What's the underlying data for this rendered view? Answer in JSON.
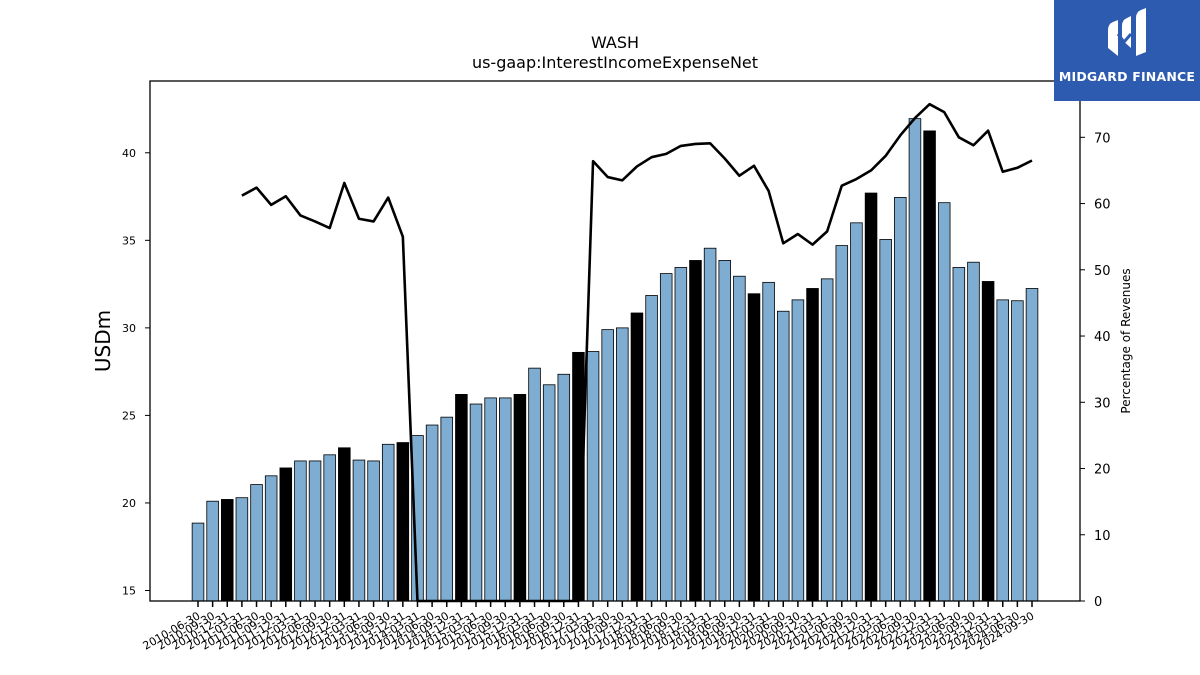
{
  "chart_data": {
    "type": "bar",
    "title": "WASH",
    "subtitle": "us-gaap:InterestIncomeExpenseNet",
    "ylabel": "USDm",
    "y2label": "Percentage of Revenues",
    "ylim": [
      14.4,
      44.1
    ],
    "y2lim": [
      0,
      78.5
    ],
    "yticks": [
      15,
      20,
      25,
      30,
      35,
      40
    ],
    "y2ticks": [
      0,
      10,
      20,
      30,
      40,
      50,
      60,
      70
    ],
    "categories": [
      "2010-06-30",
      "2010-09-30",
      "2010-12-31",
      "2011-03-31",
      "2011-06-30",
      "2011-09-30",
      "2011-12-31",
      "2012-03-31",
      "2012-06-30",
      "2012-09-30",
      "2012-12-31",
      "2013-03-31",
      "2013-06-30",
      "2013-09-30",
      "2013-12-31",
      "2014-03-31",
      "2014-06-30",
      "2014-09-30",
      "2014-12-31",
      "2015-03-31",
      "2015-06-30",
      "2015-09-30",
      "2015-12-31",
      "2016-03-31",
      "2016-06-30",
      "2016-09-30",
      "2016-12-31",
      "2017-03-31",
      "2017-06-30",
      "2017-09-30",
      "2017-12-31",
      "2018-03-31",
      "2018-06-30",
      "2018-09-30",
      "2018-12-31",
      "2019-03-31",
      "2019-06-30",
      "2019-09-30",
      "2019-12-31",
      "2020-03-31",
      "2020-06-30",
      "2020-09-30",
      "2020-12-31",
      "2021-03-31",
      "2021-06-30",
      "2021-09-30",
      "2021-12-31",
      "2022-03-31",
      "2022-06-30",
      "2022-09-30",
      "2022-12-31",
      "2023-03-31",
      "2023-06-30",
      "2023-09-30",
      "2023-12-31",
      "2024-03-31",
      "2024-06-30",
      "2024-09-30"
    ],
    "series": [
      {
        "type": "bar",
        "color": "#7eadd1",
        "highlight_color": "#000000",
        "highlight_indices": [
          2,
          6,
          10,
          14,
          18,
          22,
          26,
          30,
          34,
          38,
          42,
          46,
          50,
          54
        ],
        "values": [
          18.85,
          20.1,
          20.2,
          20.3,
          21.05,
          21.55,
          22.0,
          22.4,
          22.4,
          22.75,
          23.15,
          22.45,
          22.4,
          23.35,
          23.45,
          23.85,
          24.45,
          24.9,
          26.2,
          25.65,
          26.0,
          26.0,
          26.2,
          27.7,
          26.75,
          27.35,
          28.6,
          28.65,
          29.9,
          30.0,
          30.85,
          31.85,
          33.1,
          33.45,
          33.85,
          34.55,
          33.85,
          32.95,
          31.95,
          32.6,
          30.95,
          31.6,
          32.25,
          32.8,
          34.7,
          36.0,
          37.7,
          35.05,
          37.45,
          41.95,
          41.25,
          37.15,
          33.45,
          33.75,
          32.65,
          31.6,
          31.55,
          32.25
        ]
      },
      {
        "type": "line",
        "axis": "right",
        "color": "#000000",
        "values": [
          null,
          null,
          null,
          61.2,
          62.4,
          59.8,
          61.1,
          58.2,
          57.3,
          56.3,
          63.1,
          57.7,
          57.3,
          60.9,
          55.0,
          0.0,
          0.0,
          0.0,
          0.0,
          0.0,
          0.0,
          0.0,
          0.0,
          0.0,
          0.0,
          0.0,
          0.0,
          66.4,
          64.0,
          63.5,
          65.6,
          67.0,
          67.5,
          68.7,
          69.0,
          69.1,
          66.8,
          64.2,
          65.7,
          61.9,
          54.0,
          55.4,
          53.8,
          55.8,
          62.7,
          63.7,
          65.0,
          67.2,
          70.3,
          72.9,
          75.0,
          73.8,
          70.0,
          68.8,
          71.0,
          64.8,
          65.4,
          66.5
        ]
      }
    ]
  },
  "logo": {
    "text": "MIDGARD FINANCE"
  }
}
